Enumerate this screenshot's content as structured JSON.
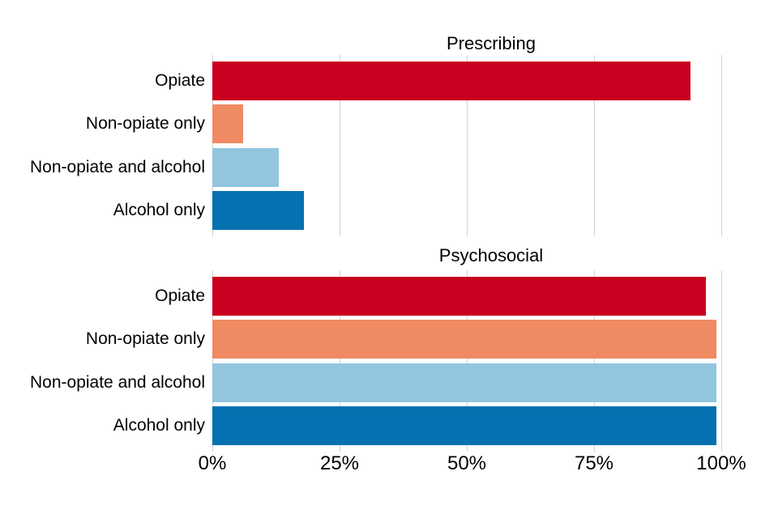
{
  "colors": {
    "background": "#ffffff",
    "text": "#000000",
    "gridline": "#d4d4d4"
  },
  "chart_data": [
    {
      "type": "bar",
      "orientation": "horizontal",
      "title": "Prescribing",
      "categories": [
        "Opiate",
        "Non-opiate only",
        "Non-opiate and alcohol",
        "Alcohol only"
      ],
      "values": [
        94,
        6,
        13,
        18
      ],
      "unit": "%",
      "bar_colors": [
        "#ca0020",
        "#ef8a62",
        "#92c5de",
        "#0571b0"
      ],
      "xlim": [
        0,
        100
      ],
      "x_tick_values": [
        0,
        25,
        50,
        75,
        100
      ],
      "x_tick_labels": [
        "0%",
        "25%",
        "50%",
        "75%",
        "100%"
      ],
      "show_x_tick_labels": false,
      "grid": true,
      "legend": "none"
    },
    {
      "type": "bar",
      "orientation": "horizontal",
      "title": "Psychosocial",
      "categories": [
        "Opiate",
        "Non-opiate only",
        "Non-opiate and alcohol",
        "Alcohol only"
      ],
      "values": [
        97,
        99,
        99,
        99
      ],
      "unit": "%",
      "bar_colors": [
        "#ca0020",
        "#ef8a62",
        "#92c5de",
        "#0571b0"
      ],
      "xlim": [
        0,
        100
      ],
      "x_tick_values": [
        0,
        25,
        50,
        75,
        100
      ],
      "x_tick_labels": [
        "0%",
        "25%",
        "50%",
        "75%",
        "100%"
      ],
      "show_x_tick_labels": true,
      "grid": true,
      "legend": "none"
    }
  ]
}
